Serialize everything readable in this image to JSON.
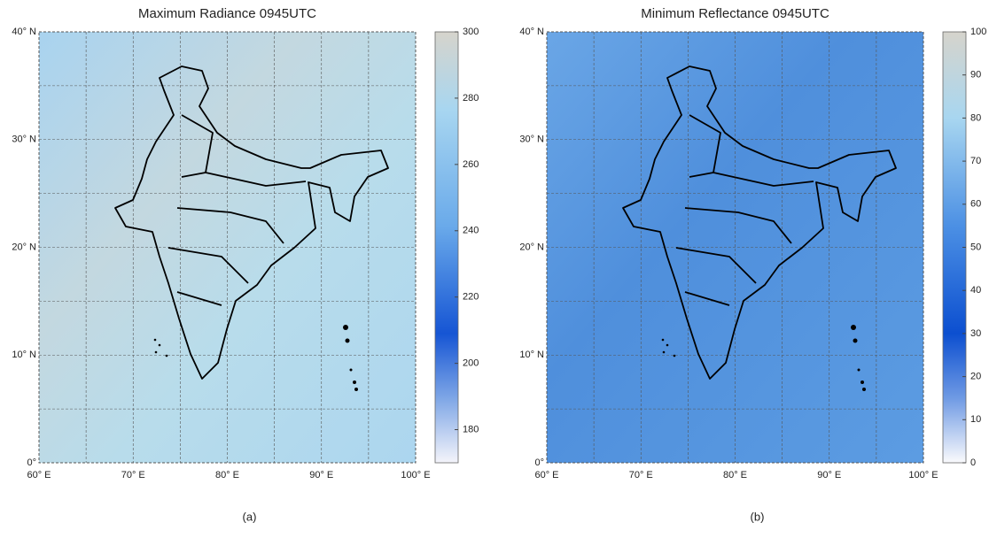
{
  "panels": [
    {
      "title": "Maximum Radiance 0945UTC",
      "lon_labels": [
        "60° E",
        "70° E",
        "80° E",
        "90° E",
        "100° E"
      ],
      "lat_labels": [
        "0°",
        "10° N",
        "20° N",
        "30° N",
        "40° N"
      ],
      "colorbar": {
        "lim": [
          170,
          300
        ],
        "ticks": [
          180,
          200,
          220,
          240,
          260,
          280,
          300
        ]
      },
      "caption": "(a)"
    },
    {
      "title": "Minimum Reflectance 0945UTC",
      "lon_labels": [
        "60° E",
        "70° E",
        "80° E",
        "90° E",
        "100° E"
      ],
      "lat_labels": [
        "0°",
        "10° N",
        "20° N",
        "30° N",
        "40° N"
      ],
      "colorbar": {
        "lim": [
          0,
          100
        ],
        "ticks": [
          0,
          10,
          20,
          30,
          40,
          50,
          60,
          70,
          80,
          90,
          100
        ]
      },
      "caption": "(b)"
    }
  ]
}
